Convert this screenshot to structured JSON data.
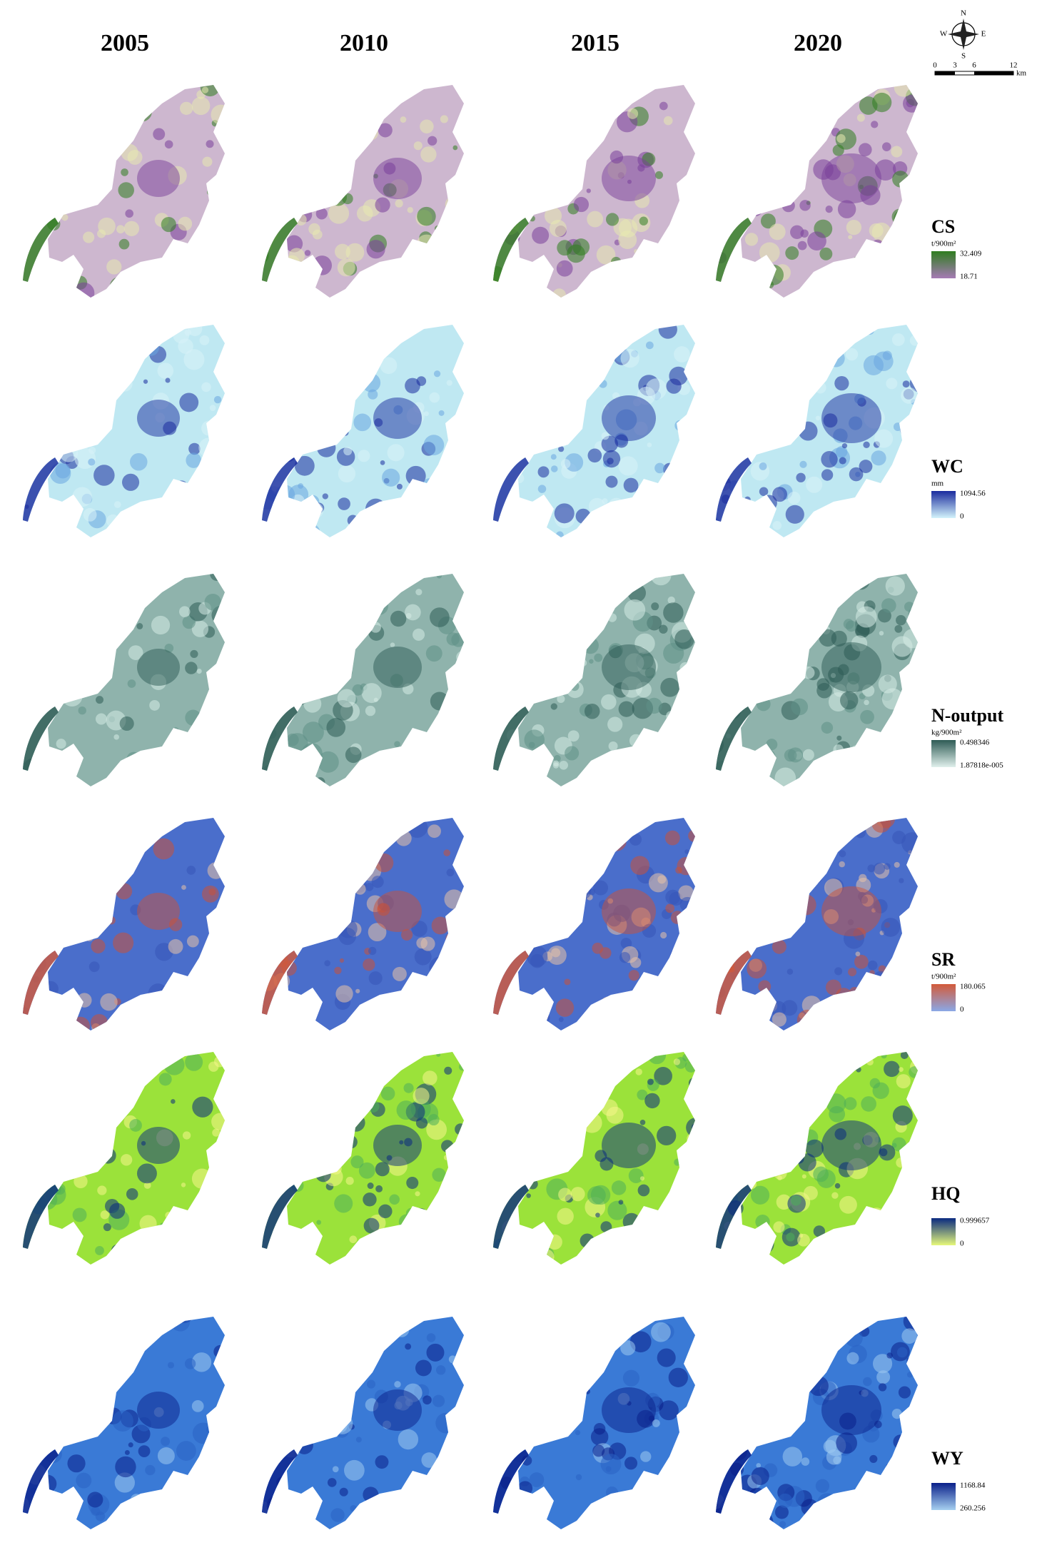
{
  "years": [
    "2005",
    "2010",
    "2015",
    "2020"
  ],
  "compass": {
    "north": "N",
    "south": "S",
    "west": "W",
    "east": "E"
  },
  "scale_bar": {
    "ticks": [
      "0",
      "3",
      "6",
      "12"
    ],
    "unit": "km"
  },
  "rows": [
    {
      "name": "CS",
      "unit": "t/900m²",
      "max": "32.409",
      "min": "18.71"
    },
    {
      "name": "WC",
      "unit": "mm",
      "max": "1094.56",
      "min": "0"
    },
    {
      "name": "N-output",
      "unit": "kg/900m²",
      "max": "0.498346",
      "min": "1.87818e-005"
    },
    {
      "name": "SR",
      "unit": "t/900m²",
      "max": "180.065",
      "min": "0"
    },
    {
      "name": "HQ",
      "max": "0.999657",
      "min": "0"
    },
    {
      "name": "WY",
      "max": "1168.84",
      "min": "260.256"
    }
  ]
}
